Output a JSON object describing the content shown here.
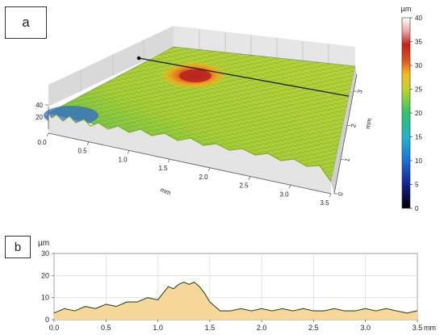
{
  "panels": {
    "a_label": "a",
    "b_label": "b"
  },
  "chart_data": [
    {
      "type": "surface",
      "panel": "a",
      "colorbar": {
        "unit": "µm",
        "ticks": [
          0,
          5,
          10,
          15,
          20,
          25,
          30,
          35,
          40
        ],
        "range": [
          0,
          40
        ],
        "colors": [
          "#000000",
          "#10208c",
          "#1f6fd6",
          "#1fb5d0",
          "#2ec46a",
          "#b8d628",
          "#f2c21e",
          "#e2581e",
          "#c8201e",
          "#e9a9a5",
          "#ffffff"
        ]
      },
      "x_axis": {
        "label": "mm",
        "ticks": [
          "0.0",
          "0.5",
          "1.0",
          "1.5",
          "2.0",
          "2.5",
          "3.0",
          "3.5"
        ],
        "range": [
          0,
          3.5
        ]
      },
      "y_axis": {
        "label": "mm",
        "ticks": [
          "0",
          "1",
          "2",
          "3"
        ],
        "range": [
          0,
          3.5
        ]
      },
      "z_axis": {
        "ticks": [
          "20",
          "40"
        ],
        "range": [
          0,
          40
        ]
      },
      "features": [
        {
          "type": "peak",
          "x": 1.3,
          "y": 3.0,
          "height": 30
        },
        {
          "type": "depression",
          "x": 0.1,
          "y": 0.4,
          "height": 10
        }
      ],
      "base_height": 20,
      "profile_line_y": 3.0
    },
    {
      "type": "area",
      "panel": "b",
      "ylabel": "µm",
      "xlabel": "mm",
      "xlim": [
        0,
        3.5
      ],
      "ylim": [
        0,
        30
      ],
      "x_ticks": [
        "0.0",
        "0.5",
        "1.0",
        "1.5",
        "2.0",
        "2.5",
        "3.0",
        "3.5"
      ],
      "y_ticks": [
        "0",
        "10",
        "20",
        "30"
      ],
      "grid": true,
      "fill_color": "#f7d89a",
      "line_color": "#2f4a1c",
      "x": [
        0.0,
        0.1,
        0.2,
        0.3,
        0.4,
        0.5,
        0.6,
        0.7,
        0.8,
        0.9,
        1.0,
        1.05,
        1.1,
        1.15,
        1.2,
        1.25,
        1.3,
        1.35,
        1.4,
        1.45,
        1.5,
        1.55,
        1.6,
        1.7,
        1.8,
        1.9,
        2.0,
        2.1,
        2.2,
        2.3,
        2.4,
        2.5,
        2.6,
        2.7,
        2.8,
        2.9,
        3.0,
        3.1,
        3.2,
        3.3,
        3.4,
        3.5
      ],
      "y": [
        3,
        5,
        4,
        6,
        5,
        7,
        6,
        8,
        8,
        10,
        9,
        12,
        15,
        14,
        16,
        17,
        16,
        17,
        15,
        12,
        8,
        6,
        4,
        4,
        5,
        4,
        5,
        4,
        5,
        4,
        5,
        4,
        4,
        5,
        4,
        4,
        5,
        4,
        5,
        4,
        3,
        4
      ]
    }
  ]
}
